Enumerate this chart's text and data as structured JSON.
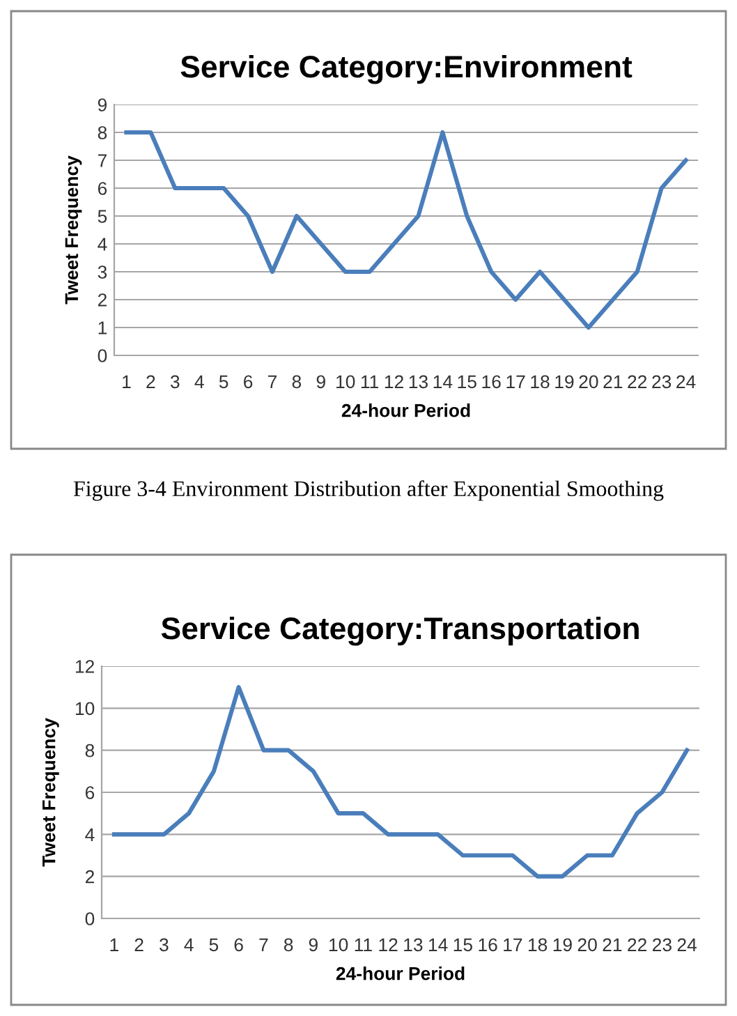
{
  "chart_data": [
    {
      "type": "line",
      "title": "Service Category:Environment",
      "xlabel": "24-hour Period",
      "ylabel": "Tweet Frequency",
      "categories": [
        "1",
        "2",
        "3",
        "4",
        "5",
        "6",
        "7",
        "8",
        "9",
        "10",
        "11",
        "12",
        "13",
        "14",
        "15",
        "16",
        "17",
        "18",
        "19",
        "20",
        "21",
        "22",
        "23",
        "24"
      ],
      "series": [
        {
          "color": "#4a7ebb",
          "values": [
            8,
            8,
            6,
            6,
            6,
            5,
            3,
            5,
            4,
            3,
            3,
            4,
            5,
            8,
            5,
            3,
            2,
            3,
            2,
            1,
            2,
            3,
            6,
            7
          ]
        }
      ],
      "ylim": [
        0,
        9
      ],
      "yticks": [
        0,
        1,
        2,
        3,
        4,
        5,
        6,
        7,
        8,
        9
      ],
      "grid": "y",
      "marker": "none",
      "line_style": "solid",
      "annotations": [
        "Figure 3-4 Environment Distribution after Exponential Smoothing"
      ]
    },
    {
      "type": "line",
      "title": "Service Category:Transportation",
      "xlabel": "24-hour Period",
      "ylabel": "Tweet Frequency",
      "categories": [
        "1",
        "2",
        "3",
        "4",
        "5",
        "6",
        "7",
        "8",
        "9",
        "10",
        "11",
        "12",
        "13",
        "14",
        "15",
        "16",
        "17",
        "18",
        "19",
        "20",
        "21",
        "22",
        "23",
        "24"
      ],
      "series": [
        {
          "color": "#4a7ebb",
          "values": [
            4,
            4,
            4,
            5,
            7,
            11,
            8,
            8,
            7,
            5,
            5,
            4,
            4,
            4,
            3,
            3,
            3,
            2,
            2,
            3,
            3,
            5,
            6,
            8
          ]
        }
      ],
      "ylim": [
        0,
        12
      ],
      "yticks": [
        0,
        2,
        4,
        6,
        8,
        10,
        12
      ],
      "grid": "y",
      "marker": "none",
      "line_style": "solid"
    }
  ]
}
